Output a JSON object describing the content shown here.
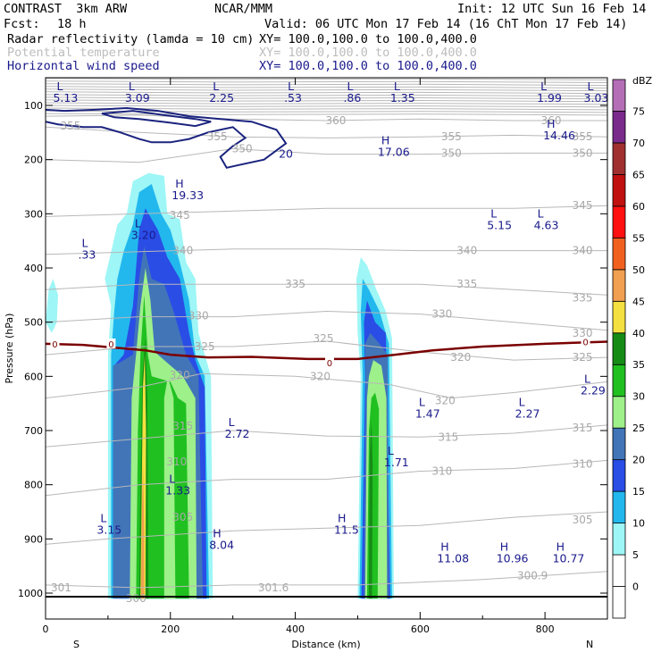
{
  "header": {
    "model": "CONTRAST  3km ARW",
    "org": "NCAR/MMM",
    "init": "Init: 12 UTC Sun 16 Feb 14",
    "fcst_label": "Fcst:",
    "fcst_value": "18 h",
    "valid": "Valid: 06 UTC Mon 17 Feb 14 (16 ChT Mon 17 Feb 14)",
    "fields": [
      {
        "name": "Radar reflectivity (lamda = 10 cm)",
        "xy": "XY= 100.0,100.0 to 100.0,400.0",
        "color": "#000000"
      },
      {
        "name": "Potential temperature",
        "xy": "XY= 100.0,100.0 to 100.0,400.0",
        "color": "#bdbdbd"
      },
      {
        "name": "Horizontal wind speed",
        "xy": "XY= 100.0,100.0 to 100.0,400.0",
        "color": "#1a1a8c"
      }
    ]
  },
  "chart_data": {
    "type": "cross-section",
    "xlabel": "Distance (km)",
    "ylabel": "Pressure (hPa)",
    "xlim": [
      0,
      900
    ],
    "ylim": [
      1000,
      50
    ],
    "x_ticks": [
      0,
      200,
      400,
      600,
      800
    ],
    "y_ticks": [
      100,
      200,
      300,
      400,
      500,
      600,
      700,
      800,
      900,
      1000
    ],
    "x_end_labels": {
      "left": "S",
      "right": "N"
    },
    "colorbar": {
      "unit": "dBZ",
      "levels": [
        0,
        5,
        10,
        15,
        20,
        25,
        30,
        35,
        40,
        45,
        50,
        55,
        60,
        65,
        70,
        75
      ],
      "colors": [
        "#ffffff",
        "#9ef6f6",
        "#22b8ee",
        "#2a4de6",
        "#4275b8",
        "#9ef08a",
        "#20c020",
        "#168c16",
        "#f4e040",
        "#f0a050",
        "#f26020",
        "#ff1010",
        "#c01010",
        "#a03030",
        "#7a2a8a",
        "#b46eb6"
      ]
    },
    "theta_labels": [
      {
        "text": "360",
        "x": 465,
        "p": 128
      },
      {
        "text": "360",
        "x": 810,
        "p": 128
      },
      {
        "text": "355",
        "x": 40,
        "p": 138
      },
      {
        "text": "355",
        "x": 275,
        "p": 158
      },
      {
        "text": "355",
        "x": 650,
        "p": 158
      },
      {
        "text": "355",
        "x": 860,
        "p": 158
      },
      {
        "text": "350",
        "x": 315,
        "p": 180
      },
      {
        "text": "350",
        "x": 650,
        "p": 188
      },
      {
        "text": "350",
        "x": 860,
        "p": 188
      },
      {
        "text": "345",
        "x": 215,
        "p": 303
      },
      {
        "text": "345",
        "x": 860,
        "p": 285
      },
      {
        "text": "340",
        "x": 220,
        "p": 368
      },
      {
        "text": "340",
        "x": 675,
        "p": 368
      },
      {
        "text": "340",
        "x": 860,
        "p": 368
      },
      {
        "text": "335",
        "x": 400,
        "p": 430
      },
      {
        "text": "335",
        "x": 675,
        "p": 430
      },
      {
        "text": "335",
        "x": 860,
        "p": 455
      },
      {
        "text": "330",
        "x": 245,
        "p": 488
      },
      {
        "text": "330",
        "x": 635,
        "p": 485
      },
      {
        "text": "330",
        "x": 860,
        "p": 520
      },
      {
        "text": "325",
        "x": 255,
        "p": 545
      },
      {
        "text": "325",
        "x": 445,
        "p": 530
      },
      {
        "text": "325",
        "x": 860,
        "p": 565
      },
      {
        "text": "320",
        "x": 440,
        "p": 600
      },
      {
        "text": "320",
        "x": 665,
        "p": 565
      },
      {
        "text": "320",
        "x": 640,
        "p": 645
      },
      {
        "text": "320",
        "x": 215,
        "p": 598
      },
      {
        "text": "315",
        "x": 220,
        "p": 692
      },
      {
        "text": "315",
        "x": 645,
        "p": 712
      },
      {
        "text": "315",
        "x": 860,
        "p": 695
      },
      {
        "text": "310",
        "x": 635,
        "p": 775
      },
      {
        "text": "310",
        "x": 860,
        "p": 762
      },
      {
        "text": "310",
        "x": 210,
        "p": 758
      },
      {
        "text": "305",
        "x": 220,
        "p": 860
      },
      {
        "text": "305",
        "x": 860,
        "p": 865
      },
      {
        "text": "300.9",
        "x": 780,
        "p": 968
      },
      {
        "text": "301",
        "x": 25,
        "p": 990
      },
      {
        "text": "301.6",
        "x": 365,
        "p": 990
      },
      {
        "text": "300",
        "x": 145,
        "p": 1010
      }
    ],
    "extrema": [
      {
        "type": "L",
        "value": "5.13",
        "x": 15,
        "p": 65
      },
      {
        "type": "L",
        "value": "3.09",
        "x": 130,
        "p": 65
      },
      {
        "type": "L",
        "value": "2.25",
        "x": 265,
        "p": 65
      },
      {
        "type": "L",
        "value": ".53",
        "x": 385,
        "p": 65
      },
      {
        "type": "L",
        "value": ".86",
        "x": 480,
        "p": 65
      },
      {
        "type": "L",
        "value": "1.35",
        "x": 555,
        "p": 65
      },
      {
        "type": "L",
        "value": "1.99",
        "x": 790,
        "p": 65
      },
      {
        "type": "L",
        "value": "3.03",
        "x": 865,
        "p": 65
      },
      {
        "type": "H",
        "value": "14.46",
        "x": 800,
        "p": 135
      },
      {
        "type": "H",
        "value": "17.06",
        "x": 535,
        "p": 165
      },
      {
        "type": "H",
        "value": "19.33",
        "x": 205,
        "p": 245
      },
      {
        "type": "L",
        "value": "3.20",
        "x": 140,
        "p": 318
      },
      {
        "type": "L",
        "value": ".33",
        "x": 55,
        "p": 355
      },
      {
        "type": "L",
        "value": "5.15",
        "x": 710,
        "p": 300
      },
      {
        "type": "L",
        "value": "4.63",
        "x": 785,
        "p": 300
      },
      {
        "type": "L",
        "value": "2.29",
        "x": 860,
        "p": 605
      },
      {
        "type": "L",
        "value": "1.47",
        "x": 595,
        "p": 648
      },
      {
        "type": "L",
        "value": "2.27",
        "x": 755,
        "p": 648
      },
      {
        "type": "L",
        "value": "2.72",
        "x": 290,
        "p": 685
      },
      {
        "type": "L",
        "value": "1.71",
        "x": 545,
        "p": 738
      },
      {
        "type": "L",
        "value": "1.33",
        "x": 195,
        "p": 790
      },
      {
        "type": "L",
        "value": "3.15",
        "x": 85,
        "p": 862
      },
      {
        "type": "H",
        "value": "8.04",
        "x": 265,
        "p": 890
      },
      {
        "type": "H",
        "value": "11.5",
        "x": 465,
        "p": 862
      },
      {
        "type": "H",
        "value": "11.08",
        "x": 630,
        "p": 915
      },
      {
        "type": "H",
        "value": "10.96",
        "x": 725,
        "p": 915
      },
      {
        "type": "H",
        "value": "10.77",
        "x": 815,
        "p": 915
      }
    ],
    "wind_contour_label": "20",
    "freezing_level_labels": [
      {
        "text": "0",
        "x": 15,
        "p": 540
      },
      {
        "text": "0",
        "x": 105,
        "p": 540
      },
      {
        "text": "0",
        "x": 455,
        "p": 575
      },
      {
        "text": "0",
        "x": 865,
        "p": 536
      }
    ]
  }
}
